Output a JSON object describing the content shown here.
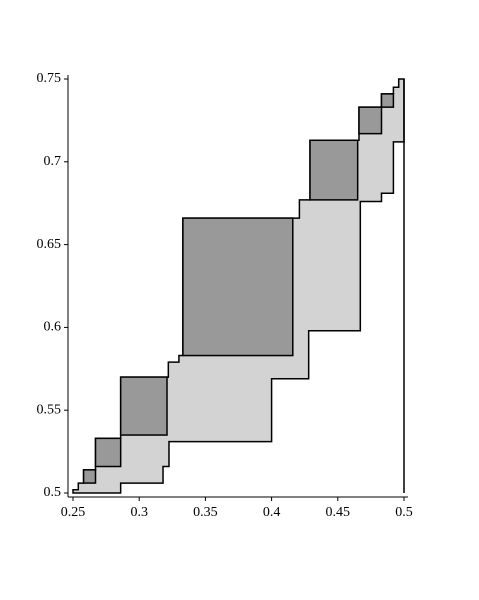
{
  "chart_data": {
    "type": "region",
    "xlim": [
      0.25,
      0.5
    ],
    "ylim": [
      0.5,
      0.75
    ],
    "xticks": [
      0.25,
      0.3,
      0.35,
      0.4,
      0.45,
      0.5
    ],
    "yticks": [
      0.5,
      0.55,
      0.6,
      0.65,
      0.7,
      0.75
    ],
    "polygons": [
      {
        "color": "#d3d3d3",
        "x": [
          0.25,
          0.286,
          0.286,
          0.318,
          0.318,
          0.3225,
          0.3225,
          0.4,
          0.4,
          0.428,
          0.428,
          0.467,
          0.467,
          0.483,
          0.483,
          0.492,
          0.492,
          0.5,
          0.5,
          0.496,
          0.496,
          0.492,
          0.492,
          0.483,
          0.483,
          0.466,
          0.466,
          0.429,
          0.429,
          0.421,
          0.421,
          0.333,
          0.333,
          0.33,
          0.33,
          0.322,
          0.322,
          0.286,
          0.286,
          0.267,
          0.267,
          0.258,
          0.258,
          0.254,
          0.254,
          0.25
        ],
        "y": [
          0.5,
          0.5,
          0.506,
          0.506,
          0.516,
          0.516,
          0.531,
          0.531,
          0.569,
          0.569,
          0.598,
          0.598,
          0.676,
          0.676,
          0.681,
          0.681,
          0.712,
          0.712,
          0.75,
          0.75,
          0.745,
          0.745,
          0.741,
          0.741,
          0.733,
          0.733,
          0.713,
          0.713,
          0.677,
          0.677,
          0.666,
          0.666,
          0.583,
          0.583,
          0.579,
          0.579,
          0.57,
          0.57,
          0.533,
          0.533,
          0.514,
          0.514,
          0.506,
          0.506,
          0.502,
          0.502
        ]
      }
    ],
    "rects": [
      {
        "color": "#999999",
        "x": [
          0.258,
          0.267
        ],
        "y": [
          0.506,
          0.514
        ]
      },
      {
        "color": "#999999",
        "x": [
          0.267,
          0.286
        ],
        "y": [
          0.516,
          0.533
        ]
      },
      {
        "color": "#999999",
        "x": [
          0.286,
          0.321
        ],
        "y": [
          0.535,
          0.57
        ]
      },
      {
        "color": "#999999",
        "x": [
          0.333,
          0.416
        ],
        "y": [
          0.583,
          0.666
        ]
      },
      {
        "color": "#999999",
        "x": [
          0.429,
          0.465
        ],
        "y": [
          0.677,
          0.713
        ]
      },
      {
        "color": "#999999",
        "x": [
          0.466,
          0.483
        ],
        "y": [
          0.717,
          0.733
        ]
      },
      {
        "color": "#999999",
        "x": [
          0.483,
          0.492
        ],
        "y": [
          0.733,
          0.741
        ]
      }
    ]
  }
}
